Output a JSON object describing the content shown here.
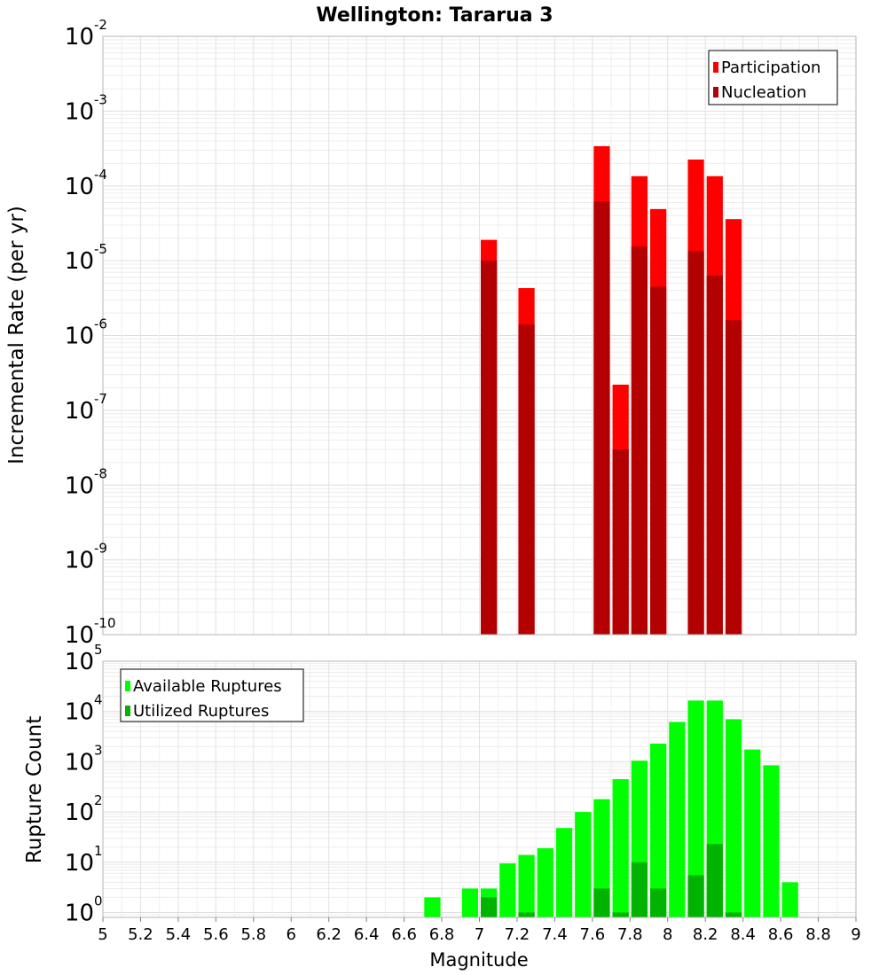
{
  "chart_data": [
    {
      "type": "bar",
      "title": "Wellington: Tararua 3",
      "ylabel": "Incremental Rate (per yr)",
      "xlabel": "",
      "yscale": "log",
      "ylim": [
        1e-10,
        0.01
      ],
      "xlim": [
        5,
        9
      ],
      "y_tick_bases": [
        "10",
        "10",
        "10",
        "10",
        "10",
        "10",
        "10",
        "10",
        "10"
      ],
      "y_tick_exps": [
        "-10",
        "-9",
        "-8",
        "-7",
        "-6",
        "-5",
        "-4",
        "-3",
        "-2"
      ],
      "legend": "top-right",
      "grid": true,
      "series": [
        {
          "name": "Participation",
          "color": "#ff0000",
          "x": [
            7.05,
            7.25,
            7.65,
            7.75,
            7.85,
            7.95,
            8.15,
            8.25,
            8.35
          ],
          "values": [
            1.9e-05,
            4.3e-06,
            0.00034,
            2.2e-07,
            0.000135,
            4.9e-05,
            0.000225,
            0.000135,
            3.6e-05
          ]
        },
        {
          "name": "Nucleation",
          "color": "#b30000",
          "x": [
            7.05,
            7.25,
            7.65,
            7.75,
            7.85,
            7.95,
            8.15,
            8.25,
            8.35
          ],
          "values": [
            1e-05,
            1.4e-06,
            6.2e-05,
            3e-08,
            1.55e-05,
            4.5e-06,
            1.35e-05,
            6.3e-06,
            1.6e-06
          ]
        }
      ]
    },
    {
      "type": "bar",
      "title": "",
      "ylabel": "Rupture Count",
      "xlabel": "Magnitude",
      "yscale": "log",
      "ylim": [
        0.8,
        100000.0
      ],
      "xlim": [
        5,
        9
      ],
      "x_ticks": [
        "5",
        "5.2",
        "5.4",
        "5.6",
        "5.8",
        "6",
        "6.2",
        "6.4",
        "6.6",
        "6.8",
        "7",
        "7.2",
        "7.4",
        "7.6",
        "7.8",
        "8",
        "8.2",
        "8.4",
        "8.6",
        "8.8",
        "9"
      ],
      "y_tick_bases": [
        "10",
        "10",
        "10",
        "10",
        "10",
        "10"
      ],
      "y_tick_exps": [
        "0",
        "1",
        "2",
        "3",
        "4",
        "5"
      ],
      "legend": "top-left",
      "grid": true,
      "series": [
        {
          "name": "Available Ruptures",
          "color": "#00ff00",
          "x": [
            6.75,
            6.95,
            7.05,
            7.15,
            7.25,
            7.35,
            7.45,
            7.55,
            7.65,
            7.75,
            7.85,
            7.95,
            8.05,
            8.15,
            8.25,
            8.35,
            8.45,
            8.55,
            8.65
          ],
          "values": [
            2,
            3,
            3,
            9.5,
            14,
            19,
            48,
            100,
            180,
            450,
            1050,
            2300,
            6200,
            16500,
            16500,
            7000,
            1750,
            850,
            4
          ]
        },
        {
          "name": "Utilized Ruptures",
          "color": "#00b300",
          "x": [
            7.05,
            7.25,
            7.65,
            7.75,
            7.85,
            7.95,
            8.15,
            8.25,
            8.35
          ],
          "values": [
            2,
            1,
            3,
            1,
            10,
            3,
            5.5,
            23,
            1
          ]
        }
      ]
    }
  ]
}
